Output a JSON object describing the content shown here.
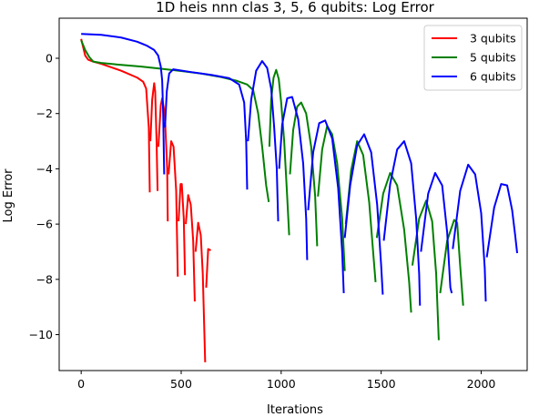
{
  "chart_data": {
    "type": "line",
    "title": "1D heis nnn clas 3, 5, 6 qubits: Log Error",
    "xlabel": "Iterations",
    "ylabel": "Log Error",
    "xlim": [
      -110,
      2230
    ],
    "ylim": [
      -11.3,
      1.45
    ],
    "xticks": [
      0,
      500,
      1000,
      1500,
      2000
    ],
    "xtick_labels": [
      "0",
      "500",
      "1000",
      "1500",
      "2000"
    ],
    "yticks": [
      0,
      -2,
      -4,
      -6,
      -8,
      -10
    ],
    "ytick_labels": [
      "0",
      "−2",
      "−4",
      "−6",
      "−8",
      "−10"
    ],
    "grid": false,
    "legend_position": "top-right",
    "series": [
      {
        "name": "3 qubits",
        "color": "#ff0000",
        "segments": [
          [
            [
              0,
              0.7
            ],
            [
              10,
              0.4
            ],
            [
              20,
              0.1
            ],
            [
              35,
              -0.05
            ],
            [
              60,
              -0.12
            ],
            [
              100,
              -0.2
            ],
            [
              200,
              -0.45
            ],
            [
              280,
              -0.7
            ],
            [
              310,
              -0.85
            ],
            [
              325,
              -1.1
            ],
            [
              338,
              -2.5
            ],
            [
              343,
              -4.85
            ]
          ],
          [
            [
              346,
              -3.0
            ],
            [
              355,
              -1.5
            ],
            [
              365,
              -0.9
            ],
            [
              370,
              -1.2
            ],
            [
              377,
              -3.0
            ],
            [
              382,
              -4.8
            ]
          ],
          [
            [
              386,
              -3.2
            ],
            [
              398,
              -1.7
            ],
            [
              405,
              -1.45
            ],
            [
              418,
              -2.0
            ],
            [
              430,
              -4.0
            ],
            [
              433,
              -5.9
            ]
          ],
          [
            [
              437,
              -4.2
            ],
            [
              450,
              -3.0
            ],
            [
              462,
              -3.2
            ],
            [
              475,
              -4.8
            ],
            [
              483,
              -7.9
            ]
          ],
          [
            [
              487,
              -5.9
            ],
            [
              497,
              -4.55
            ],
            [
              503,
              -4.55
            ],
            [
              513,
              -5.8
            ],
            [
              519,
              -7.85
            ]
          ],
          [
            [
              523,
              -6.0
            ],
            [
              535,
              -4.95
            ],
            [
              548,
              -5.3
            ],
            [
              560,
              -6.6
            ],
            [
              568,
              -8.8
            ]
          ],
          [
            [
              572,
              -7.0
            ],
            [
              585,
              -5.95
            ],
            [
              598,
              -6.4
            ],
            [
              608,
              -7.8
            ],
            [
              620,
              -11.0
            ]
          ],
          [
            [
              625,
              -8.3
            ],
            [
              635,
              -6.9
            ],
            [
              648,
              -6.95
            ]
          ]
        ]
      },
      {
        "name": "5 qubits",
        "color": "#008000",
        "segments": [
          [
            [
              0,
              0.65
            ],
            [
              20,
              0.3
            ],
            [
              40,
              0.05
            ],
            [
              60,
              -0.12
            ],
            [
              100,
              -0.17
            ],
            [
              200,
              -0.24
            ],
            [
              300,
              -0.3
            ],
            [
              400,
              -0.38
            ],
            [
              500,
              -0.46
            ],
            [
              600,
              -0.55
            ],
            [
              700,
              -0.68
            ],
            [
              780,
              -0.82
            ],
            [
              830,
              -0.95
            ],
            [
              860,
              -1.15
            ],
            [
              885,
              -2.0
            ],
            [
              905,
              -3.2
            ],
            [
              925,
              -4.6
            ],
            [
              938,
              -5.2
            ]
          ],
          [
            [
              941,
              -3.2
            ],
            [
              950,
              -1.5
            ],
            [
              962,
              -0.7
            ],
            [
              975,
              -0.42
            ],
            [
              988,
              -0.75
            ],
            [
              1000,
              -1.6
            ],
            [
              1015,
              -3.0
            ],
            [
              1030,
              -5.0
            ],
            [
              1040,
              -6.4
            ]
          ],
          [
            [
              1044,
              -4.2
            ],
            [
              1060,
              -2.6
            ],
            [
              1080,
              -1.75
            ],
            [
              1100,
              -1.6
            ],
            [
              1125,
              -2.0
            ],
            [
              1150,
              -3.2
            ],
            [
              1170,
              -5.0
            ],
            [
              1180,
              -6.8
            ]
          ],
          [
            [
              1184,
              -5.0
            ],
            [
              1205,
              -3.3
            ],
            [
              1230,
              -2.45
            ],
            [
              1255,
              -2.75
            ],
            [
              1280,
              -3.8
            ],
            [
              1305,
              -5.8
            ],
            [
              1318,
              -7.7
            ]
          ],
          [
            [
              1323,
              -6.0
            ],
            [
              1350,
              -4.05
            ],
            [
              1380,
              -3.0
            ],
            [
              1410,
              -3.5
            ],
            [
              1440,
              -5.2
            ],
            [
              1462,
              -7.2
            ],
            [
              1472,
              -8.1
            ]
          ],
          [
            [
              1478,
              -6.5
            ],
            [
              1510,
              -4.9
            ],
            [
              1545,
              -4.15
            ],
            [
              1580,
              -4.6
            ],
            [
              1615,
              -6.2
            ],
            [
              1640,
              -8.1
            ],
            [
              1650,
              -9.2
            ]
          ],
          [
            [
              1656,
              -7.5
            ],
            [
              1690,
              -5.8
            ],
            [
              1725,
              -5.15
            ],
            [
              1755,
              -5.9
            ],
            [
              1775,
              -7.8
            ],
            [
              1788,
              -10.2
            ]
          ],
          [
            [
              1795,
              -8.5
            ],
            [
              1830,
              -6.6
            ],
            [
              1865,
              -5.85
            ],
            [
              1880,
              -5.95
            ],
            [
              1895,
              -7.5
            ],
            [
              1910,
              -8.95
            ]
          ]
        ]
      },
      {
        "name": "6 qubits",
        "color": "#0000ff",
        "segments": [
          [
            [
              0,
              0.88
            ],
            [
              100,
              0.85
            ],
            [
              200,
              0.75
            ],
            [
              280,
              0.6
            ],
            [
              330,
              0.45
            ],
            [
              365,
              0.3
            ],
            [
              385,
              0.1
            ],
            [
              398,
              -0.3
            ],
            [
              405,
              -0.8
            ],
            [
              410,
              -2.0
            ],
            [
              415,
              -4.2
            ]
          ],
          [
            [
              419,
              -2.5
            ],
            [
              428,
              -1.2
            ],
            [
              440,
              -0.55
            ],
            [
              460,
              -0.4
            ],
            [
              550,
              -0.5
            ],
            [
              650,
              -0.6
            ],
            [
              740,
              -0.72
            ],
            [
              790,
              -0.95
            ],
            [
              815,
              -1.6
            ],
            [
              825,
              -3.0
            ],
            [
              830,
              -4.75
            ]
          ],
          [
            [
              834,
              -3.0
            ],
            [
              850,
              -1.5
            ],
            [
              875,
              -0.45
            ],
            [
              905,
              -0.1
            ],
            [
              930,
              -0.35
            ],
            [
              950,
              -1.1
            ],
            [
              965,
              -2.5
            ],
            [
              978,
              -4.0
            ],
            [
              985,
              -5.9
            ]
          ],
          [
            [
              990,
              -4.0
            ],
            [
              1005,
              -2.4
            ],
            [
              1030,
              -1.45
            ],
            [
              1055,
              -1.4
            ],
            [
              1085,
              -2.2
            ],
            [
              1110,
              -3.8
            ],
            [
              1125,
              -5.8
            ],
            [
              1130,
              -7.3
            ]
          ],
          [
            [
              1135,
              -5.5
            ],
            [
              1160,
              -3.4
            ],
            [
              1190,
              -2.35
            ],
            [
              1220,
              -2.25
            ],
            [
              1255,
              -2.9
            ],
            [
              1285,
              -4.7
            ],
            [
              1305,
              -7.0
            ],
            [
              1313,
              -8.5
            ]
          ],
          [
            [
              1318,
              -6.5
            ],
            [
              1345,
              -4.6
            ],
            [
              1380,
              -3.15
            ],
            [
              1415,
              -2.75
            ],
            [
              1450,
              -3.4
            ],
            [
              1480,
              -5.3
            ],
            [
              1500,
              -7.5
            ],
            [
              1508,
              -8.55
            ]
          ],
          [
            [
              1513,
              -6.6
            ],
            [
              1545,
              -4.55
            ],
            [
              1580,
              -3.3
            ],
            [
              1615,
              -3.0
            ],
            [
              1650,
              -3.8
            ],
            [
              1675,
              -5.8
            ],
            [
              1690,
              -7.8
            ],
            [
              1694,
              -8.95
            ]
          ],
          [
            [
              1699,
              -7.0
            ],
            [
              1735,
              -4.9
            ],
            [
              1770,
              -4.15
            ],
            [
              1805,
              -4.6
            ],
            [
              1830,
              -6.3
            ],
            [
              1846,
              -8.3
            ],
            [
              1853,
              -8.5
            ]
          ],
          [
            [
              1858,
              -6.9
            ],
            [
              1895,
              -4.8
            ],
            [
              1935,
              -3.85
            ],
            [
              1970,
              -4.2
            ],
            [
              2000,
              -5.6
            ],
            [
              2018,
              -7.6
            ],
            [
              2023,
              -8.8
            ]
          ],
          [
            [
              2028,
              -7.2
            ],
            [
              2065,
              -5.4
            ],
            [
              2100,
              -4.55
            ],
            [
              2130,
              -4.6
            ],
            [
              2155,
              -5.5
            ],
            [
              2170,
              -6.4
            ],
            [
              2180,
              -7.05
            ]
          ]
        ]
      }
    ]
  }
}
